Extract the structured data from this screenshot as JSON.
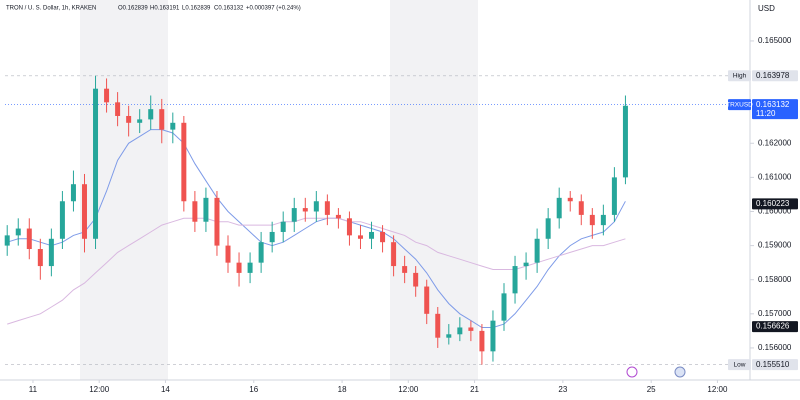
{
  "chart_data": {
    "type": "candlestick",
    "legend": {
      "symbol": "TRON / U. S. Dollar, 1h, KRAKEN",
      "ohlc": [
        "O0.162839",
        "H0.163191",
        "L0.162839",
        "C0.163132"
      ],
      "change": "+0.000397 (+0.24%)"
    },
    "axis_unit": "USD",
    "x": [
      -14,
      -8,
      -2,
      4,
      10,
      16,
      22,
      28,
      34,
      40,
      46,
      52,
      58,
      64,
      70,
      76,
      82,
      88,
      94,
      100,
      106,
      112,
      118,
      124,
      130,
      136,
      142,
      148,
      154,
      160,
      166,
      172,
      178,
      184,
      190,
      196,
      202,
      208,
      214,
      220,
      226,
      232,
      238,
      244,
      250,
      256,
      262,
      268,
      274,
      280,
      286,
      292,
      298,
      304,
      310,
      316,
      322
    ],
    "xlim": [
      -15.2,
      389.7
    ],
    "xticks": [
      {
        "value": 0,
        "label": "11"
      },
      {
        "value": 36,
        "label": "12:00"
      },
      {
        "value": 72,
        "label": "14"
      },
      {
        "value": 120,
        "label": "16"
      },
      {
        "value": 168,
        "label": "18"
      },
      {
        "value": 204,
        "label": "12:00"
      },
      {
        "value": 240,
        "label": "21"
      },
      {
        "value": 288,
        "label": "23"
      },
      {
        "value": 336,
        "label": "25"
      },
      {
        "value": 372,
        "label": "12:00"
      }
    ],
    "ylim": [
      0.15506,
      0.1662
    ],
    "yticks": [
      {
        "value": 0.165,
        "label": "0.165000"
      },
      {
        "value": 0.162,
        "label": "0.162000"
      },
      {
        "value": 0.161,
        "label": "0.161000"
      },
      {
        "value": 0.16,
        "label": "0.160000"
      },
      {
        "value": 0.159,
        "label": "0.159000"
      },
      {
        "value": 0.158,
        "label": "0.158000"
      },
      {
        "value": 0.157,
        "label": "0.157000"
      },
      {
        "value": 0.156,
        "label": "0.156000"
      }
    ],
    "grid": false,
    "up_color": "#26a69a",
    "down_color": "#ef5350",
    "open": [
      0.159,
      0.1593,
      0.1595,
      0.1589,
      0.1584,
      0.1592,
      0.1603,
      0.1608,
      0.1592,
      0.1636,
      0.1632,
      0.1628,
      0.1626,
      0.1627,
      0.163,
      0.1624,
      0.1626,
      0.1603,
      0.1597,
      0.1604,
      0.159,
      0.1585,
      0.1582,
      0.1585,
      0.1591,
      0.1594,
      0.1597,
      0.1601,
      0.16,
      0.1603,
      0.1599,
      0.1598,
      0.1593,
      0.1592,
      0.1594,
      0.1591,
      0.1584,
      0.1582,
      0.1578,
      0.157,
      0.1563,
      0.1564,
      0.1566,
      0.1565,
      0.1559,
      0.1568,
      0.1576,
      0.1584,
      0.1585,
      0.1592,
      0.1598,
      0.1604,
      0.1603,
      0.1599,
      0.1596,
      0.1599,
      0.161
    ],
    "high": [
      0.1596,
      0.1598,
      0.1598,
      0.1592,
      0.1595,
      0.1606,
      0.1612,
      0.1611,
      0.163978,
      0.1639,
      0.1635,
      0.1631,
      0.163,
      0.1634,
      0.1633,
      0.1629,
      0.1628,
      0.1606,
      0.1607,
      0.1606,
      0.1593,
      0.1588,
      0.1588,
      0.1594,
      0.1597,
      0.16,
      0.1604,
      0.1604,
      0.1606,
      0.1605,
      0.1601,
      0.16,
      0.1596,
      0.1597,
      0.1596,
      0.1593,
      0.1587,
      0.1584,
      0.158,
      0.1572,
      0.1567,
      0.1569,
      0.1568,
      0.1567,
      0.1571,
      0.1579,
      0.1587,
      0.1588,
      0.1595,
      0.1601,
      0.1607,
      0.1606,
      0.1605,
      0.1601,
      0.1602,
      0.1613,
      0.1634
    ],
    "low": [
      0.1587,
      0.159,
      0.1586,
      0.158,
      0.1581,
      0.1589,
      0.16,
      0.1588,
      0.1589,
      0.1629,
      0.1625,
      0.1622,
      0.1623,
      0.1624,
      0.162,
      0.162,
      0.16,
      0.1594,
      0.1594,
      0.1587,
      0.1582,
      0.1578,
      0.1579,
      0.1582,
      0.1588,
      0.1591,
      0.1594,
      0.1597,
      0.1597,
      0.1596,
      0.1595,
      0.159,
      0.1589,
      0.1589,
      0.1588,
      0.1581,
      0.1579,
      0.1575,
      0.1567,
      0.156,
      0.1561,
      0.1562,
      0.1562,
      0.15551,
      0.1556,
      0.1565,
      0.1573,
      0.158,
      0.1582,
      0.1589,
      0.1595,
      0.16,
      0.1596,
      0.1592,
      0.1593,
      0.1597,
      0.1608
    ],
    "close": [
      0.1593,
      0.1595,
      0.1589,
      0.1584,
      0.1592,
      0.1603,
      0.1608,
      0.1592,
      0.1636,
      0.1632,
      0.1628,
      0.1626,
      0.1627,
      0.163,
      0.1624,
      0.1626,
      0.1603,
      0.1597,
      0.1604,
      0.159,
      0.1585,
      0.1582,
      0.1585,
      0.1591,
      0.1594,
      0.1597,
      0.1601,
      0.16,
      0.1603,
      0.1599,
      0.1598,
      0.1593,
      0.1592,
      0.1594,
      0.1591,
      0.1584,
      0.1582,
      0.1578,
      0.157,
      0.1563,
      0.1564,
      0.1566,
      0.1565,
      0.1559,
      0.1568,
      0.1576,
      0.1584,
      0.1585,
      0.1592,
      0.1598,
      0.1604,
      0.1603,
      0.1599,
      0.1596,
      0.1599,
      0.161,
      0.1631
    ],
    "series": [
      {
        "color": "#7e9be8",
        "values": [
          0.1591,
          0.1592,
          0.1592,
          0.1591,
          0.159,
          0.1591,
          0.1593,
          0.1594,
          0.1598,
          0.1606,
          0.1615,
          0.162,
          0.1622,
          0.1624,
          0.1624,
          0.1623,
          0.162,
          0.1614,
          0.1609,
          0.1604,
          0.16,
          0.1597,
          0.1594,
          0.1591,
          0.159,
          0.1591,
          0.1593,
          0.1595,
          0.1597,
          0.1598,
          0.1598,
          0.1597,
          0.1596,
          0.1595,
          0.1594,
          0.1592,
          0.1589,
          0.1586,
          0.1582,
          0.1577,
          0.1573,
          0.157,
          0.1568,
          0.1566,
          0.1566,
          0.1567,
          0.157,
          0.1574,
          0.1578,
          0.1583,
          0.1587,
          0.159,
          0.1592,
          0.1593,
          0.1594,
          0.1597,
          0.1603
        ]
      },
      {
        "color": "#d9b8e0",
        "values": [
          0.1567,
          0.1568,
          0.1569,
          0.157,
          0.1572,
          0.1574,
          0.1577,
          0.1579,
          0.1582,
          0.1585,
          0.1588,
          0.159,
          0.1592,
          0.1594,
          0.1596,
          0.1597,
          0.1598,
          0.1598,
          0.1598,
          0.1597,
          0.1597,
          0.1596,
          0.1596,
          0.1596,
          0.1596,
          0.1597,
          0.1597,
          0.1598,
          0.1598,
          0.1598,
          0.1598,
          0.1597,
          0.1597,
          0.1596,
          0.1595,
          0.1594,
          0.1593,
          0.1591,
          0.159,
          0.1588,
          0.1587,
          0.1586,
          0.1585,
          0.1584,
          0.1583,
          0.1583,
          0.1583,
          0.1584,
          0.1585,
          0.1586,
          0.1587,
          0.1588,
          0.1589,
          0.159,
          0.159,
          0.1591,
          0.1592
        ]
      }
    ],
    "price_labels": [
      {
        "name": "High",
        "value": 0.163978,
        "label": "0.163978",
        "color": "#e0e3eb"
      },
      {
        "name": "TRXUSD",
        "value": 0.163132,
        "label": "0.163132",
        "sub": "11:20",
        "color": "#2962ff"
      },
      {
        "value": 0.160223,
        "label": "0.160223",
        "color": "#131722"
      },
      {
        "value": 0.156626,
        "label": "0.156626",
        "color": "#131722"
      },
      {
        "name": "Low",
        "value": 0.15551,
        "label": "0.155510",
        "color": "#e0e3eb"
      }
    ]
  }
}
